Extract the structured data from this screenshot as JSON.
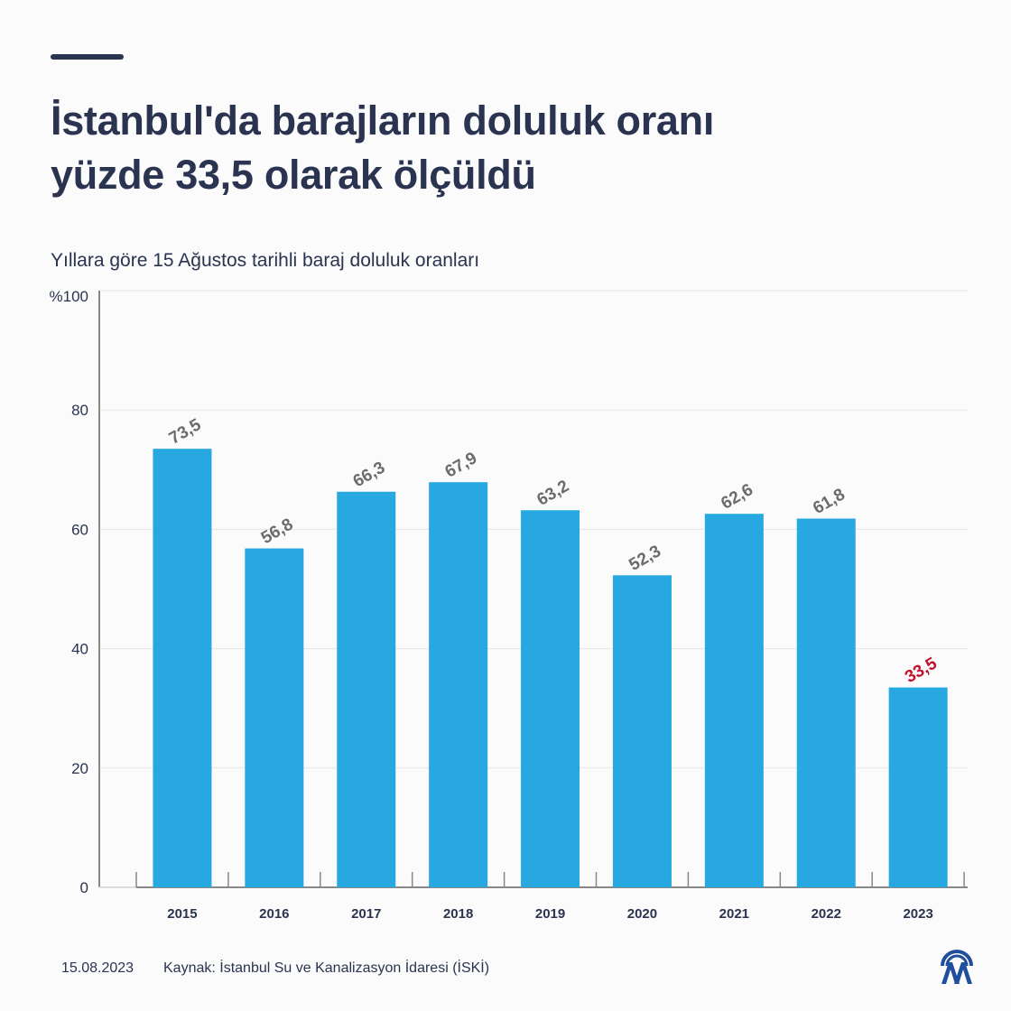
{
  "header": {
    "title_line1": "İstanbul'da barajların doluluk oranı",
    "title_line2": "yüzde 33,5 olarak ölçüldü",
    "subtitle": "Yıllara göre 15 Ağustos tarihli baraj doluluk oranları"
  },
  "chart_data": {
    "type": "bar",
    "categories": [
      "2015",
      "2016",
      "2017",
      "2018",
      "2019",
      "2020",
      "2021",
      "2022",
      "2023"
    ],
    "values": [
      73.5,
      56.8,
      66.3,
      67.9,
      63.2,
      52.3,
      62.6,
      61.8,
      33.5
    ],
    "data_labels": [
      "73,5",
      "56,8",
      "66,3",
      "67,9",
      "63,2",
      "52,3",
      "62,6",
      "61,8",
      "33,5"
    ],
    "ylim": [
      0,
      100
    ],
    "yticks": [
      0,
      20,
      40,
      60,
      80,
      100
    ],
    "ytick_labels": [
      "0",
      "20",
      "40",
      "60",
      "80",
      "%100"
    ],
    "grid": true,
    "colors": {
      "bar": "#27a8e0",
      "label": "#6b6b6b",
      "highlight_label": "#c0122c",
      "grid": "#e6e6e6",
      "axis": "#888888"
    },
    "highlight_index": 8
  },
  "footer": {
    "date": "15.08.2023",
    "source": "Kaynak: İstanbul Su ve Kanalizasyon İdaresi (İSKİ)",
    "logo": "AA"
  }
}
